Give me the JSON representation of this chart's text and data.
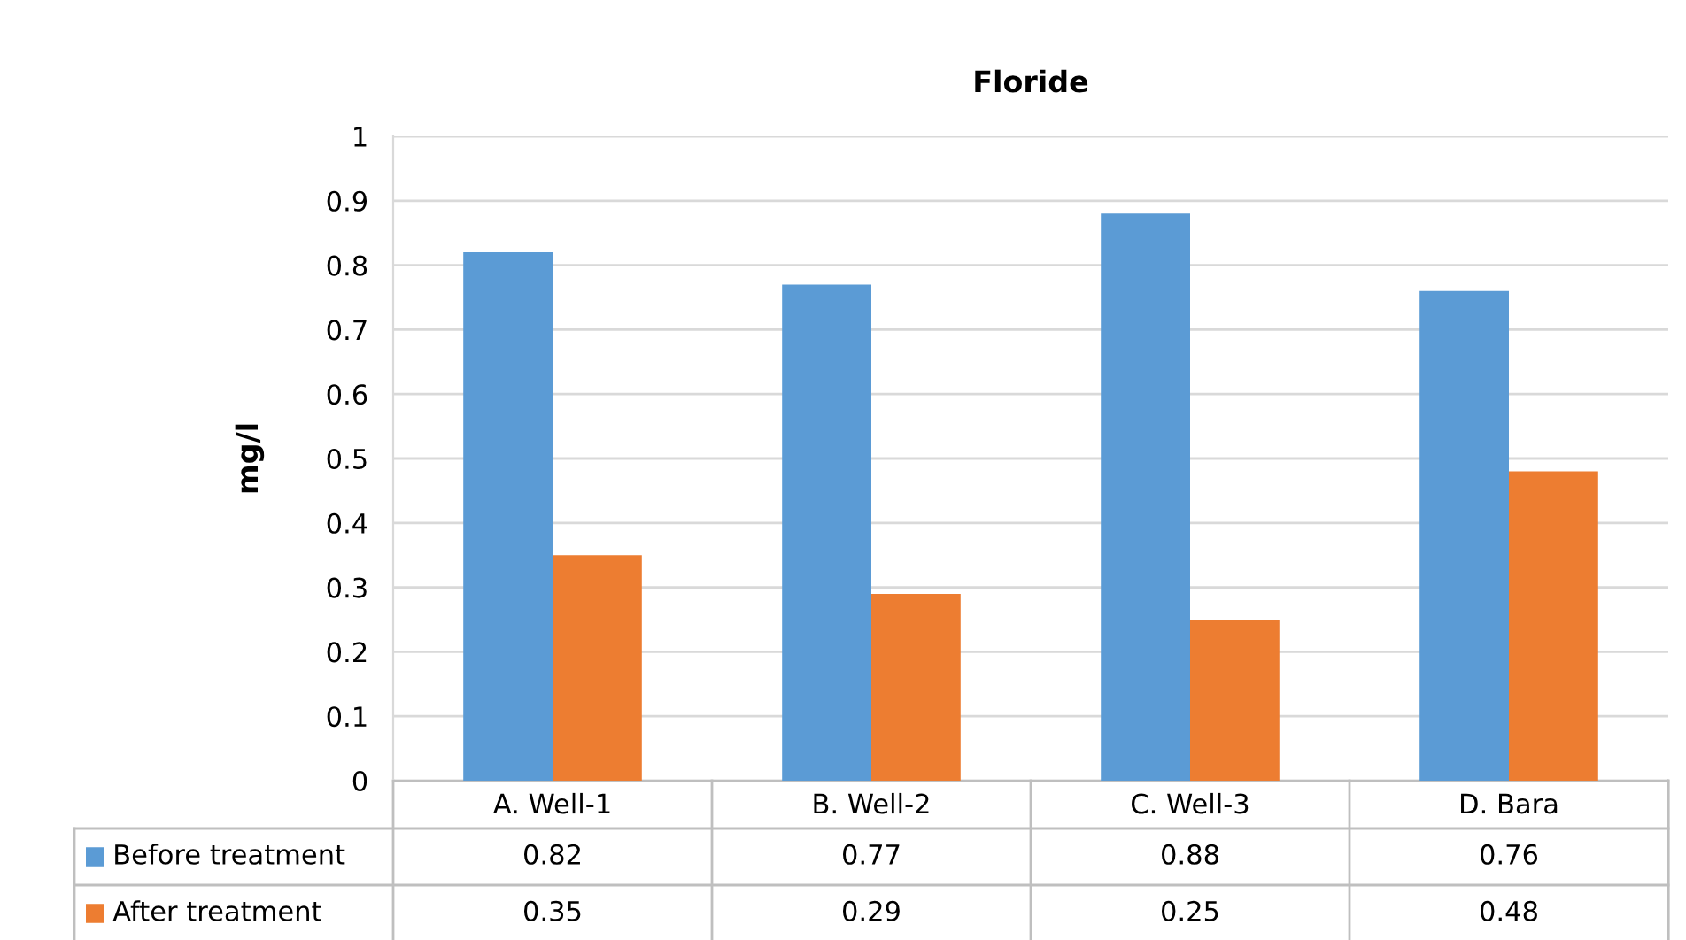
{
  "chart_data": {
    "type": "bar",
    "title": "Floride",
    "ylabel": "mg/l",
    "categories": [
      "A. Well-1",
      "B. Well-2",
      "C. Well-3",
      "D. Bara"
    ],
    "series": [
      {
        "name": "Before treatment",
        "color": "#5b9bd5",
        "values": [
          0.82,
          0.77,
          0.88,
          0.76
        ]
      },
      {
        "name": "After treatment",
        "color": "#ed7d31",
        "values": [
          0.35,
          0.29,
          0.25,
          0.48
        ]
      }
    ],
    "ylim": [
      0,
      1
    ],
    "yticks": [
      0,
      0.1,
      0.2,
      0.3,
      0.4,
      0.5,
      0.6,
      0.7,
      0.8,
      0.9,
      1
    ],
    "grid": "y",
    "data_labels": true,
    "legend": "bottom"
  }
}
